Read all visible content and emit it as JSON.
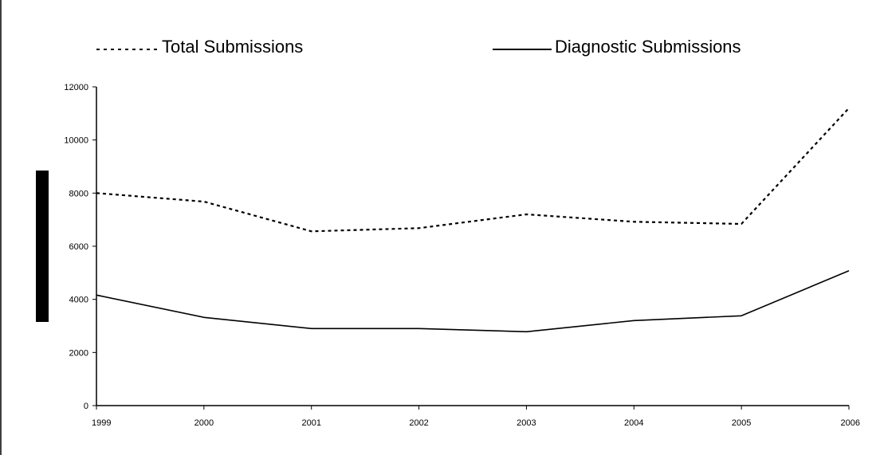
{
  "chart_data": {
    "type": "line",
    "title": "",
    "xlabel": "",
    "ylabel": "",
    "categories": [
      "1999",
      "2000",
      "2001",
      "2002",
      "2003",
      "2004",
      "2005",
      "2006"
    ],
    "ylim": [
      0,
      12000
    ],
    "yticks": [
      0,
      2000,
      4000,
      6000,
      8000,
      10000,
      12000
    ],
    "grid": false,
    "legend_position": "top",
    "series": [
      {
        "name": "Total Submissions",
        "style": "dotted",
        "color": "#000000",
        "values": [
          8000,
          7680,
          6560,
          6680,
          7200,
          6920,
          6840,
          11200
        ]
      },
      {
        "name": "Diagnostic Submissions",
        "style": "solid",
        "color": "#000000",
        "values": [
          4160,
          3320,
          2900,
          2900,
          2780,
          3200,
          3380,
          5080
        ]
      }
    ]
  }
}
